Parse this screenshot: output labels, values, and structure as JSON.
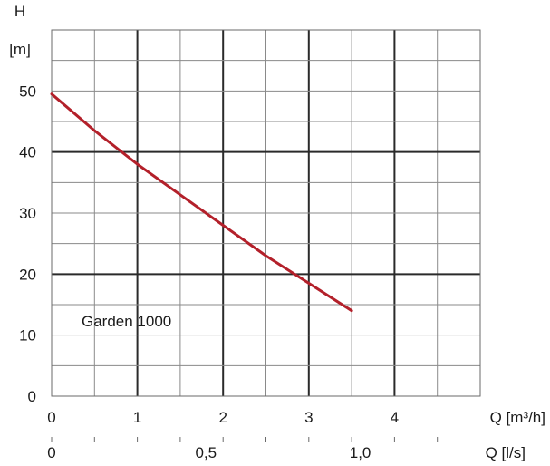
{
  "chart_data": {
    "type": "line",
    "title": "",
    "ylabel_symbol": "H",
    "ylabel_unit": "[m]",
    "xlabel_primary": "Q [m³/h]",
    "xlabel_secondary": "Q [l/s]",
    "xlim": [
      0,
      5
    ],
    "ylim": [
      0,
      60
    ],
    "grid": true,
    "x_ticks": [
      {
        "value": 0,
        "label": "0"
      },
      {
        "value": 1,
        "label": "1"
      },
      {
        "value": 2,
        "label": "2"
      },
      {
        "value": 3,
        "label": "3"
      },
      {
        "value": 4,
        "label": "4"
      }
    ],
    "x_secondary_ticks": [
      {
        "value": 0,
        "label": "0"
      },
      {
        "value": 1.8,
        "label": "0,5"
      },
      {
        "value": 3.6,
        "label": "1,0"
      }
    ],
    "y_ticks": [
      {
        "value": 0,
        "label": "0"
      },
      {
        "value": 10,
        "label": "10"
      },
      {
        "value": 20,
        "label": "20"
      },
      {
        "value": 30,
        "label": "30"
      },
      {
        "value": 40,
        "label": "40"
      },
      {
        "value": 50,
        "label": "50"
      }
    ],
    "series": [
      {
        "name": "Garden 1000",
        "color": "#b3202a",
        "x": [
          0,
          0.5,
          1.0,
          1.5,
          2.0,
          2.5,
          3.0,
          3.5
        ],
        "y": [
          49.5,
          43.5,
          38,
          33,
          28,
          23,
          18.5,
          14
        ]
      }
    ]
  }
}
